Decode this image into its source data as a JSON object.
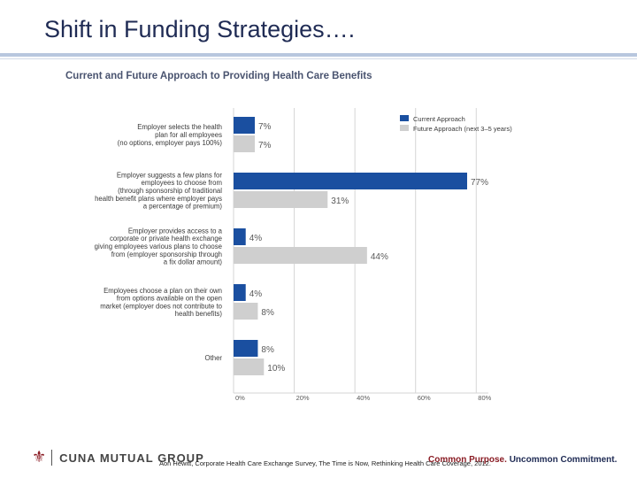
{
  "slide": {
    "title": "Shift in Funding Strategies….",
    "source_note": "Aon Hewitt, Corporate Health Care Exchange Survey, The Time is Now, Rethinking Health Care Coverage, 2012."
  },
  "footer": {
    "logo_text": "CUNA MUTUAL GROUP",
    "logo_icon": "shield-logo-icon",
    "tagline_part1": "Common Purpose.",
    "tagline_part2": "Uncommon Commitment."
  },
  "colors": {
    "current": "#1a4fa0",
    "future": "#cfcfcf",
    "title_text": "#1f2b54",
    "chart_title": "#4a5470",
    "label_text": "#3a3a3a",
    "value_text": "#5a5a5a",
    "grid": "#d6d6d6",
    "brand_red": "#8a1c24"
  },
  "chart_data": {
    "type": "bar",
    "orientation": "horizontal",
    "title": "Current and Future Approach to Providing Health Care Benefits",
    "categories": [
      [
        "Employer selects the health",
        "plan for all employees",
        "(no options, employer pays 100%)"
      ],
      [
        "Employer suggests a few plans for",
        "employees to choose from",
        "(through sponsorship of traditional",
        "health benefit plans where employer pays",
        "a percentage of premium)"
      ],
      [
        "Employer provides access to a",
        "corporate or private health exchange",
        "giving employees various plans to choose",
        "from (employer sponsorship through",
        "a fix dollar amount)"
      ],
      [
        "Employees choose a plan on their own",
        "from options available on the open",
        "market (employer does not contribute to",
        "health benefits)"
      ],
      [
        "Other"
      ]
    ],
    "series": [
      {
        "name": "Current Approach",
        "values": [
          7,
          77,
          4,
          4,
          8
        ],
        "labels": [
          "7%",
          "77%",
          "4%",
          "4%",
          "8%"
        ]
      },
      {
        "name": "Future Approach (next 3–5 years)",
        "values": [
          7,
          31,
          44,
          8,
          10
        ],
        "labels": [
          "7%",
          "31%",
          "44%",
          "8%",
          "10%"
        ]
      }
    ],
    "x_ticks": [
      "0%",
      "20%",
      "40%",
      "60%",
      "80%"
    ],
    "xlim": [
      0,
      84
    ],
    "grid": true,
    "legend_position": "top-right"
  }
}
